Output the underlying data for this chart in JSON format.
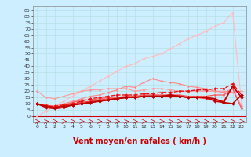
{
  "xlabel": "Vent moyen/en rafales ( km/h )",
  "background_color": "#cceeff",
  "grid_color": "#b0dde0",
  "x_ticks": [
    0,
    1,
    2,
    3,
    4,
    5,
    6,
    7,
    8,
    9,
    10,
    11,
    12,
    13,
    14,
    15,
    16,
    17,
    18,
    19,
    20,
    21,
    22,
    23
  ],
  "y_ticks": [
    0,
    5,
    10,
    15,
    20,
    25,
    30,
    35,
    40,
    45,
    50,
    55,
    60,
    65,
    70,
    75,
    80,
    85
  ],
  "ylim": [
    -5,
    88
  ],
  "xlim": [
    -0.5,
    23.5
  ],
  "figsize": [
    3.2,
    2.0
  ],
  "dpi": 100,
  "series": [
    {
      "color": "#ffbbbb",
      "lw": 0.8,
      "marker": "D",
      "ms": 1.5,
      "linestyle": "-",
      "data_x": [
        0,
        1,
        2,
        3,
        4,
        5,
        6,
        7,
        8,
        9,
        10,
        11,
        12,
        13,
        14,
        15,
        16,
        17,
        18,
        19,
        20,
        21,
        22,
        23
      ],
      "data_y": [
        0,
        4,
        8,
        12,
        16,
        20,
        24,
        28,
        32,
        36,
        40,
        42,
        46,
        48,
        50,
        54,
        58,
        62,
        65,
        68,
        72,
        75,
        83,
        10
      ]
    },
    {
      "color": "#ff9999",
      "lw": 0.8,
      "marker": "D",
      "ms": 1.5,
      "linestyle": "-",
      "data_x": [
        0,
        1,
        2,
        3,
        4,
        5,
        6,
        7,
        8,
        9,
        10,
        11,
        12,
        13,
        14,
        15,
        16,
        17,
        18,
        19,
        20,
        21,
        22,
        23
      ],
      "data_y": [
        20,
        15,
        14,
        16,
        18,
        20,
        21,
        21,
        22,
        22,
        22,
        20,
        21,
        22,
        22,
        21,
        20,
        20,
        20,
        20,
        20,
        20,
        19,
        20
      ]
    },
    {
      "color": "#ff8888",
      "lw": 0.8,
      "marker": "D",
      "ms": 1.5,
      "linestyle": "-",
      "data_x": [
        0,
        1,
        2,
        3,
        4,
        5,
        6,
        7,
        8,
        9,
        10,
        11,
        12,
        13,
        14,
        15,
        16,
        17,
        18,
        19,
        20,
        21,
        22,
        23
      ],
      "data_y": [
        10,
        9,
        8,
        10,
        12,
        14,
        16,
        17,
        19,
        21,
        24,
        23,
        27,
        30,
        28,
        27,
        26,
        24,
        23,
        22,
        20,
        19,
        22,
        8
      ]
    },
    {
      "color": "#ff5555",
      "lw": 0.9,
      "marker": "D",
      "ms": 1.5,
      "linestyle": "-",
      "data_x": [
        0,
        1,
        2,
        3,
        4,
        5,
        6,
        7,
        8,
        9,
        10,
        11,
        12,
        13,
        14,
        15,
        16,
        17,
        18,
        19,
        20,
        21,
        22,
        23
      ],
      "data_y": [
        10,
        9,
        7,
        9,
        11,
        13,
        13,
        14,
        15,
        15,
        16,
        16,
        17,
        17,
        17,
        17,
        17,
        16,
        16,
        16,
        17,
        17,
        22,
        6
      ]
    },
    {
      "color": "#ff3333",
      "lw": 0.9,
      "marker": "D",
      "ms": 1.5,
      "linestyle": "-",
      "data_x": [
        0,
        1,
        2,
        3,
        4,
        5,
        6,
        7,
        8,
        9,
        10,
        11,
        12,
        13,
        14,
        15,
        16,
        17,
        18,
        19,
        20,
        21,
        22,
        23
      ],
      "data_y": [
        10,
        8,
        7,
        9,
        10,
        11,
        12,
        13,
        14,
        14,
        15,
        15,
        16,
        16,
        16,
        17,
        16,
        15,
        15,
        14,
        13,
        12,
        24,
        15
      ]
    },
    {
      "color": "#ee1111",
      "lw": 1.0,
      "marker": "D",
      "ms": 2.0,
      "linestyle": "--",
      "data_x": [
        0,
        1,
        2,
        3,
        4,
        5,
        6,
        7,
        8,
        9,
        10,
        11,
        12,
        13,
        14,
        15,
        16,
        17,
        18,
        19,
        20,
        21,
        22,
        23
      ],
      "data_y": [
        10,
        8,
        8,
        9,
        10,
        12,
        14,
        15,
        16,
        17,
        17,
        17,
        18,
        18,
        19,
        19,
        20,
        20,
        21,
        21,
        22,
        22,
        26,
        17
      ]
    },
    {
      "color": "#cc0000",
      "lw": 1.2,
      "marker": "D",
      "ms": 2.0,
      "linestyle": "-",
      "data_x": [
        0,
        1,
        2,
        3,
        4,
        5,
        6,
        7,
        8,
        9,
        10,
        11,
        12,
        13,
        14,
        15,
        16,
        17,
        18,
        19,
        20,
        21,
        22,
        23
      ],
      "data_y": [
        10,
        8,
        7,
        8,
        9,
        10,
        11,
        12,
        13,
        14,
        15,
        15,
        16,
        16,
        16,
        16,
        16,
        15,
        15,
        15,
        12,
        11,
        24,
        15
      ]
    },
    {
      "color": "#bb0000",
      "lw": 1.2,
      "marker": "D",
      "ms": 2.0,
      "linestyle": "-",
      "data_x": [
        0,
        1,
        2,
        3,
        4,
        5,
        6,
        7,
        8,
        9,
        10,
        11,
        12,
        13,
        14,
        15,
        16,
        17,
        18,
        19,
        20,
        21,
        22,
        23
      ],
      "data_y": [
        10,
        7,
        6,
        7,
        9,
        10,
        11,
        12,
        13,
        14,
        15,
        15,
        16,
        16,
        16,
        17,
        16,
        15,
        15,
        15,
        14,
        11,
        10,
        17
      ]
    }
  ],
  "axis_fontsize": 5.5,
  "xlabel_fontsize": 7,
  "tick_fontsize": 4.5,
  "arrow_color": "#cc0000"
}
